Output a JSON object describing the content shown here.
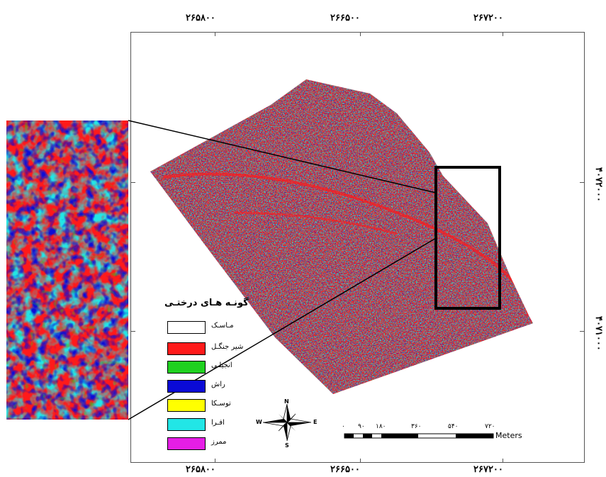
{
  "coords": {
    "top": [
      "۲۶۵۸۰۰",
      "۲۶۶۵۰۰",
      "۲۶۷۲۰۰"
    ],
    "bottom": [
      "۲۶۵۸۰۰",
      "۲۶۶۵۰۰",
      "۲۶۷۲۰۰"
    ],
    "right": [
      "۴۰۷۲۰۰۰",
      "۴۰۷۱۰۰۰"
    ]
  },
  "legend": {
    "title": "گونـه هـای درختـی",
    "items": [
      {
        "label": "مـاسـک",
        "color": "#ffffff"
      },
      {
        "label": "شیر جنگـل",
        "color": "#ff1a1a"
      },
      {
        "label": "انجیلـی",
        "color": "#1fd11f"
      },
      {
        "label": "راش",
        "color": "#0a0ad6"
      },
      {
        "label": "توسـکا",
        "color": "#ffff00"
      },
      {
        "label": "افـرا",
        "color": "#22e6e6"
      },
      {
        "label": "ممرز",
        "color": "#e61ee6"
      }
    ]
  },
  "north_arrow": {
    "n": "N",
    "s": "S",
    "e": "E",
    "w": "W"
  },
  "scale_bar": {
    "ticks": [
      "۰",
      "۹۰",
      "۱۸۰",
      "۳۶۰",
      "۵۴۰",
      "۷۲۰"
    ],
    "unit": "Meters"
  },
  "colors": {
    "red": "#ff1a1a",
    "cyan": "#22e6e6",
    "blue": "#0a0ad6",
    "green": "#1fd11f",
    "magenta": "#e61ee6",
    "yellow": "#ffff00"
  }
}
